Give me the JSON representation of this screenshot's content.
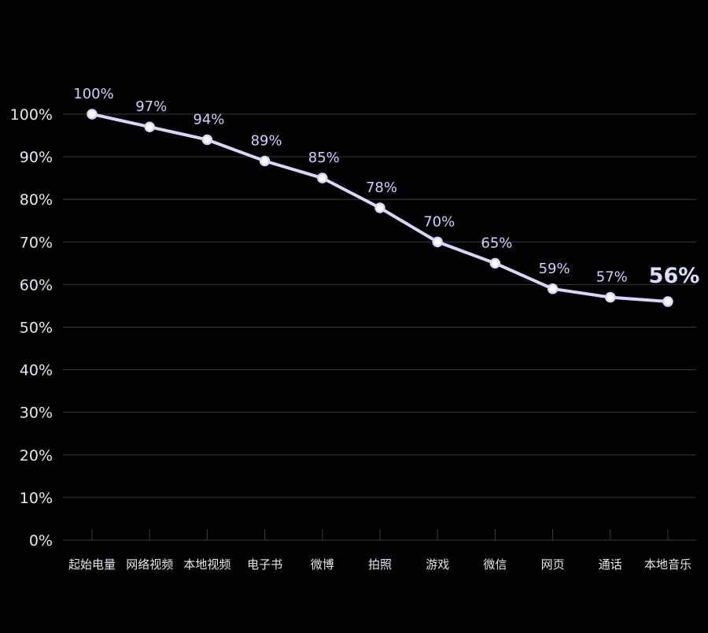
{
  "chart_data": {
    "type": "line",
    "title": "",
    "xlabel": "",
    "ylabel": "",
    "categories": [
      "起始电量",
      "网络视频",
      "本地视频",
      "电子书",
      "微博",
      "拍照",
      "游戏",
      "微信",
      "网页",
      "通话",
      "本地音乐"
    ],
    "series": [
      {
        "values": [
          100,
          97,
          94,
          89,
          85,
          78,
          70,
          65,
          59,
          57,
          56
        ],
        "value_labels": [
          "100%",
          "97%",
          "94%",
          "89%",
          "85%",
          "78%",
          "70%",
          "65%",
          "59%",
          "57%",
          "56%"
        ]
      }
    ],
    "ylim": [
      0,
      100
    ],
    "yticks": [
      0,
      10,
      20,
      30,
      40,
      50,
      60,
      70,
      80,
      90,
      100
    ],
    "ytick_labels": [
      "0%",
      "10%",
      "20%",
      "30%",
      "40%",
      "50%",
      "60%",
      "70%",
      "80%",
      "90%",
      "100%"
    ],
    "grid": true,
    "colors": {
      "background": "#000000",
      "line": "#d6d7ff",
      "marker_fill": "#ffffff",
      "grid": "#3a3a3a",
      "text": "#e6e6ef",
      "data_label": "#cfd0ff"
    },
    "highlight_last_label": true
  }
}
